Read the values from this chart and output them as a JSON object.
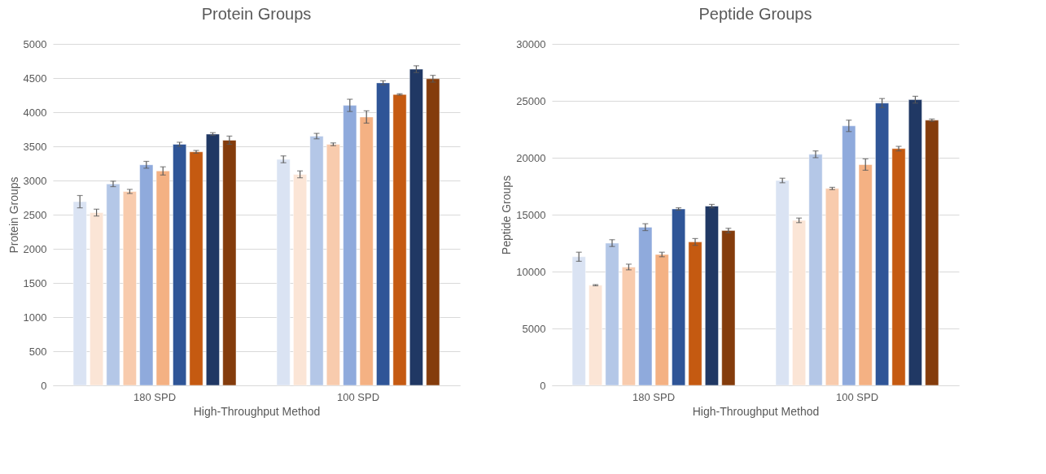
{
  "chart_data": [
    {
      "type": "bar",
      "title": "Protein Groups",
      "xlabel": "High-Throughput  Method",
      "ylabel": "Protein Groups",
      "categories": [
        "180 SPD",
        "100 SPD"
      ],
      "ylim": [
        0,
        5000
      ],
      "yticks": [
        0,
        500,
        1000,
        1500,
        2000,
        2500,
        3000,
        3500,
        4000,
        4500,
        5000
      ],
      "grid": "y",
      "series": [
        {
          "color": "#dae3f3",
          "values": [
            2690,
            3310
          ],
          "errors": [
            90,
            50
          ]
        },
        {
          "color": "#fbe5d6",
          "values": [
            2530,
            3090
          ],
          "errors": [
            50,
            50
          ]
        },
        {
          "color": "#b4c7e7",
          "values": [
            2950,
            3650
          ],
          "errors": [
            40,
            40
          ]
        },
        {
          "color": "#f8cbad",
          "values": [
            2840,
            3530
          ],
          "errors": [
            30,
            20
          ]
        },
        {
          "color": "#8faadc",
          "values": [
            3230,
            4100
          ],
          "errors": [
            50,
            90
          ]
        },
        {
          "color": "#f4b183",
          "values": [
            3140,
            3930
          ],
          "errors": [
            60,
            90
          ]
        },
        {
          "color": "#2f5597",
          "values": [
            3530,
            4430
          ],
          "errors": [
            30,
            30
          ]
        },
        {
          "color": "#c55a11",
          "values": [
            3420,
            4260
          ],
          "errors": [
            20,
            10
          ]
        },
        {
          "color": "#203864",
          "values": [
            3680,
            4630
          ],
          "errors": [
            20,
            50
          ]
        },
        {
          "color": "#843c0c",
          "values": [
            3590,
            4490
          ],
          "errors": [
            60,
            50
          ]
        }
      ]
    },
    {
      "type": "bar",
      "title": "Peptide Groups",
      "xlabel": "High-Throughput  Method",
      "ylabel": "Peptide Groups",
      "categories": [
        "180 SPD",
        "100 SPD"
      ],
      "ylim": [
        0,
        30000
      ],
      "yticks": [
        0,
        5000,
        10000,
        15000,
        20000,
        25000,
        30000
      ],
      "grid": "y",
      "series": [
        {
          "color": "#dae3f3",
          "values": [
            11300,
            18000
          ],
          "errors": [
            400,
            200
          ]
        },
        {
          "color": "#fbe5d6",
          "values": [
            8800,
            14500
          ],
          "errors": [
            50,
            200
          ]
        },
        {
          "color": "#b4c7e7",
          "values": [
            12500,
            20300
          ],
          "errors": [
            300,
            300
          ]
        },
        {
          "color": "#f8cbad",
          "values": [
            10400,
            17300
          ],
          "errors": [
            250,
            100
          ]
        },
        {
          "color": "#8faadc",
          "values": [
            13900,
            22800
          ],
          "errors": [
            300,
            500
          ]
        },
        {
          "color": "#f4b183",
          "values": [
            11500,
            19400
          ],
          "errors": [
            200,
            500
          ]
        },
        {
          "color": "#2f5597",
          "values": [
            15500,
            24800
          ],
          "errors": [
            100,
            400
          ]
        },
        {
          "color": "#c55a11",
          "values": [
            12600,
            20800
          ],
          "errors": [
            300,
            200
          ]
        },
        {
          "color": "#203864",
          "values": [
            15750,
            25100
          ],
          "errors": [
            150,
            300
          ]
        },
        {
          "color": "#843c0c",
          "values": [
            13600,
            23300
          ],
          "errors": [
            200,
            100
          ]
        }
      ]
    }
  ]
}
